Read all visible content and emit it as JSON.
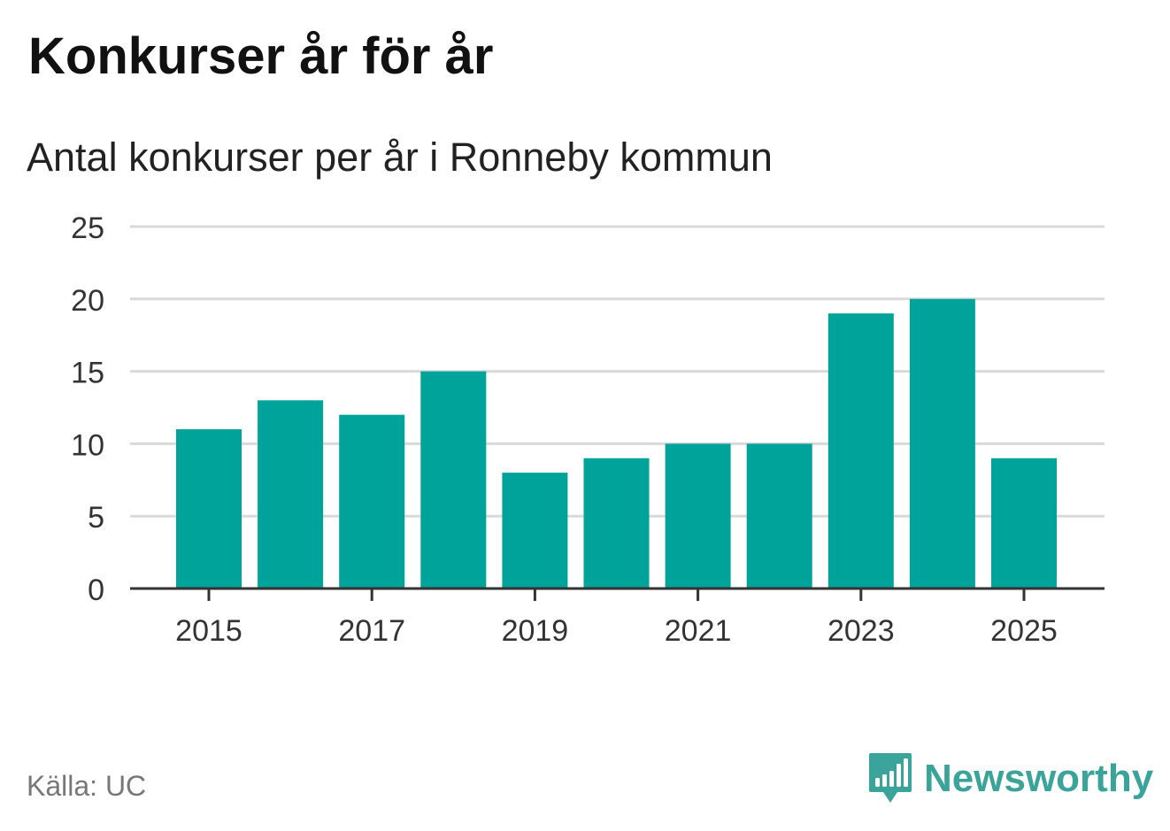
{
  "title": "Konkurser år för år",
  "subtitle": "Antal konkurser per år i Ronneby kommun",
  "source": "Källa: UC",
  "brand": {
    "name": "Newsworthy",
    "logo_icon": "bar-chart-speech-bubble-icon",
    "color": "#3aa39a"
  },
  "colors": {
    "bar": "#00a39a",
    "grid": "#d9d9d9",
    "axis": "#333333",
    "tick_text": "#333333"
  },
  "chart_data": {
    "type": "bar",
    "title": "Konkurser år för år",
    "subtitle": "Antal konkurser per år i Ronneby kommun",
    "xlabel": "",
    "ylabel": "",
    "categories": [
      "2015",
      "2016",
      "2017",
      "2018",
      "2019",
      "2020",
      "2021",
      "2022",
      "2023",
      "2024",
      "2025"
    ],
    "values": [
      11,
      13,
      12,
      15,
      8,
      9,
      10,
      10,
      19,
      20,
      9
    ],
    "x_tick_labels": [
      "2015",
      "2017",
      "2019",
      "2021",
      "2023",
      "2025"
    ],
    "y_ticks": [
      0,
      5,
      10,
      15,
      20,
      25
    ],
    "ylim": [
      0,
      25
    ],
    "grid": true,
    "legend": "none"
  }
}
